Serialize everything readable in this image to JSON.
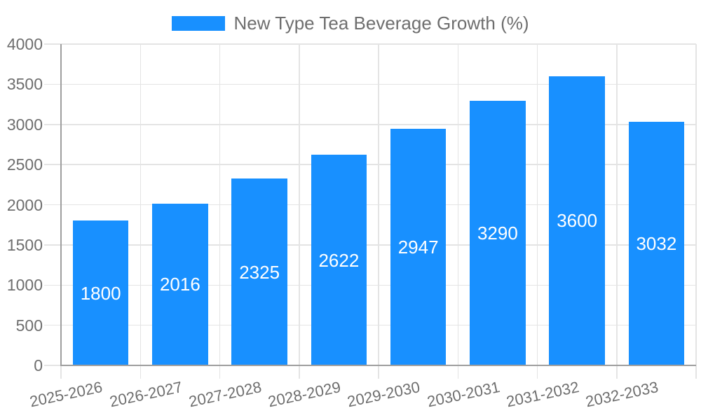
{
  "legend": {
    "items": [
      {
        "label": "New Type Tea Beverage Growth (%)",
        "color": "#1890ff"
      }
    ]
  },
  "chart_data": {
    "type": "bar",
    "title": "",
    "categories": [
      "2025-2026",
      "2026-2027",
      "2027-2028",
      "2028-2029",
      "2029-2030",
      "2030-2031",
      "2031-2032",
      "2032-2033"
    ],
    "series": [
      {
        "name": "New Type Tea Beverage Growth (%)",
        "color": "#1890ff",
        "values": [
          1800,
          2016,
          2325,
          2622,
          2947,
          3290,
          3600,
          3032
        ]
      }
    ],
    "xlabel": "",
    "ylabel": "",
    "ylim": [
      0,
      4000
    ],
    "ytick_step": 500,
    "yticks": [
      0,
      500,
      1000,
      1500,
      2000,
      2500,
      3000,
      3500,
      4000
    ],
    "grid": true,
    "legend_position": "top-center",
    "value_labels": "inside-center",
    "value_label_color": "#ffffff"
  },
  "style": {
    "bar_color": "#1890ff",
    "grid_line_color": "#e4e4e4",
    "axis_line_color": "#9e9e9e",
    "axis_text_color": "#6e6e6e",
    "legend_text_color": "#6e6e6e",
    "background_color": "#ffffff"
  }
}
